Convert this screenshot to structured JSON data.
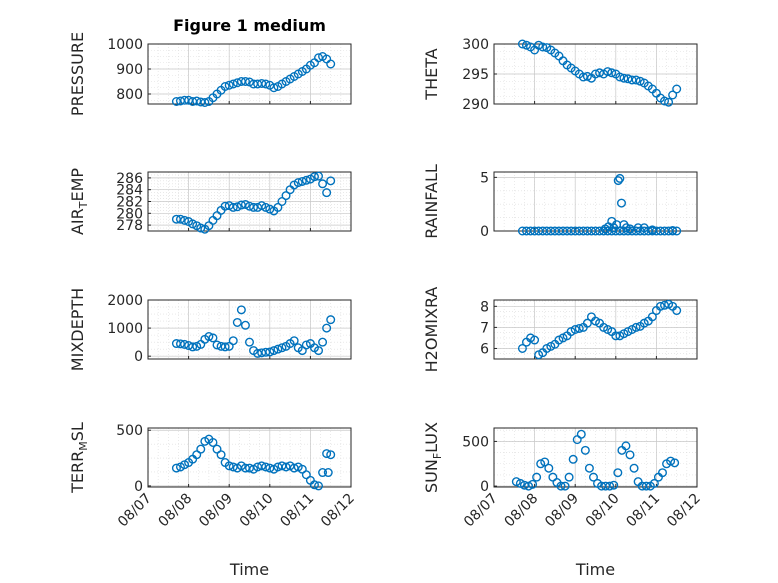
{
  "chart_data": [
    {
      "type": "scatter",
      "title": "Figure 1 medium",
      "ylabel": "PRESSURE",
      "xlabel": "",
      "xlim": [
        0,
        5
      ],
      "ylim": [
        760,
        1000
      ],
      "yticks": [
        800,
        900,
        1000
      ],
      "ytick_labels": [
        "800",
        "900",
        "1000"
      ],
      "xtick_labels": [],
      "grid": true,
      "color": "#0072BD",
      "x": [
        0.7,
        0.8,
        0.9,
        1.0,
        1.1,
        1.2,
        1.3,
        1.4,
        1.5,
        1.6,
        1.7,
        1.8,
        1.9,
        2.0,
        2.1,
        2.2,
        2.3,
        2.4,
        2.5,
        2.6,
        2.7,
        2.8,
        2.9,
        3.0,
        3.1,
        3.2,
        3.3,
        3.4,
        3.5,
        3.6,
        3.7,
        3.8,
        3.9,
        4.0,
        4.1,
        4.2,
        4.3,
        4.4,
        4.5
      ],
      "y": [
        770,
        772,
        775,
        775,
        770,
        772,
        768,
        766,
        770,
        785,
        800,
        815,
        830,
        835,
        840,
        845,
        850,
        850,
        848,
        840,
        840,
        842,
        840,
        835,
        825,
        830,
        840,
        850,
        860,
        870,
        880,
        890,
        900,
        915,
        925,
        945,
        950,
        940,
        920
      ]
    },
    {
      "type": "scatter",
      "title": "",
      "ylabel": "THETA",
      "xlabel": "",
      "xlim": [
        0,
        5
      ],
      "ylim": [
        290,
        300
      ],
      "yticks": [
        290,
        295,
        300
      ],
      "ytick_labels": [
        "290",
        "295",
        "300"
      ],
      "xtick_labels": [],
      "grid": true,
      "color": "#0072BD",
      "x": [
        0.7,
        0.8,
        0.9,
        1.0,
        1.1,
        1.2,
        1.3,
        1.4,
        1.5,
        1.6,
        1.7,
        1.8,
        1.9,
        2.0,
        2.1,
        2.2,
        2.3,
        2.4,
        2.5,
        2.6,
        2.7,
        2.8,
        2.9,
        3.0,
        3.1,
        3.2,
        3.3,
        3.4,
        3.5,
        3.6,
        3.7,
        3.8,
        3.9,
        4.0,
        4.1,
        4.2,
        4.3,
        4.4,
        4.5
      ],
      "y": [
        300,
        299.8,
        299.5,
        299,
        299.8,
        299.5,
        299.4,
        299,
        298.5,
        298,
        297.2,
        296.5,
        296,
        295.5,
        295,
        294.5,
        294.6,
        294.3,
        295,
        295.2,
        295,
        295.4,
        295.2,
        295,
        294.5,
        294.3,
        294.2,
        294,
        294,
        293.8,
        293.5,
        293,
        292.5,
        291.8,
        291,
        290.5,
        290.3,
        291.5,
        292.5
      ]
    },
    {
      "type": "scatter",
      "title": "",
      "ylabel": "AIR_TEMP",
      "xlabel": "",
      "xlim": [
        0,
        5
      ],
      "ylim": [
        277,
        287
      ],
      "yticks": [
        278,
        280,
        282,
        284,
        286
      ],
      "ytick_labels": [
        "278",
        "280",
        "282",
        "284",
        "286"
      ],
      "xtick_labels": [],
      "grid": true,
      "color": "#0072BD",
      "x": [
        0.7,
        0.8,
        0.9,
        1.0,
        1.1,
        1.2,
        1.3,
        1.4,
        1.5,
        1.6,
        1.7,
        1.8,
        1.9,
        2.0,
        2.1,
        2.2,
        2.3,
        2.4,
        2.5,
        2.6,
        2.7,
        2.8,
        2.9,
        3.0,
        3.1,
        3.2,
        3.3,
        3.4,
        3.5,
        3.6,
        3.7,
        3.8,
        3.9,
        4.0,
        4.1,
        4.2,
        4.3,
        4.4,
        4.5
      ],
      "y": [
        279,
        279,
        278.8,
        278.6,
        278.2,
        277.9,
        277.5,
        277.3,
        277.9,
        278.8,
        279.6,
        280.5,
        281.2,
        281.3,
        281,
        281.1,
        281.4,
        281.5,
        281.2,
        281,
        281,
        281.3,
        281,
        280.7,
        280.4,
        281,
        282,
        283,
        284,
        284.8,
        285.2,
        285.4,
        285.6,
        285.8,
        286.2,
        286.3,
        285,
        283.5,
        285.5
      ]
    },
    {
      "type": "scatter",
      "title": "",
      "ylabel": "RAINFALL",
      "xlabel": "",
      "xlim": [
        0,
        5
      ],
      "ylim": [
        0,
        5.5
      ],
      "yticks": [
        0,
        5
      ],
      "ytick_labels": [
        "0",
        "5"
      ],
      "xtick_labels": [],
      "grid": true,
      "color": "#0072BD",
      "x": [
        0.7,
        0.8,
        0.9,
        1.0,
        1.1,
        1.2,
        1.3,
        1.4,
        1.5,
        1.6,
        1.7,
        1.8,
        1.9,
        2.0,
        2.1,
        2.2,
        2.3,
        2.4,
        2.5,
        2.6,
        2.7,
        2.8,
        2.9,
        3.0,
        3.1,
        3.2,
        3.3,
        3.4,
        3.5,
        3.6,
        3.7,
        3.8,
        3.9,
        4.0,
        4.1,
        4.2,
        4.3,
        4.4,
        4.5,
        2.74,
        2.82,
        2.9,
        2.95,
        3.02,
        3.06,
        3.1,
        3.14,
        3.2,
        3.26,
        3.35,
        3.55,
        3.7,
        3.9,
        4.4
      ],
      "y": [
        0,
        0,
        0,
        0,
        0,
        0,
        0,
        0,
        0,
        0,
        0,
        0,
        0,
        0,
        0,
        0,
        0,
        0,
        0,
        0,
        0,
        0,
        0,
        0,
        0,
        0,
        0,
        0,
        0,
        0,
        0,
        0,
        0,
        0,
        0,
        0,
        0,
        0,
        0,
        0.2,
        0.4,
        0.9,
        0.3,
        0.6,
        4.7,
        4.9,
        2.6,
        0.6,
        0.3,
        0.2,
        0.3,
        0.3,
        0.1,
        0.05
      ]
    },
    {
      "type": "scatter",
      "title": "",
      "ylabel": "MIXDEPTH",
      "xlabel": "",
      "xlim": [
        0,
        5
      ],
      "ylim": [
        -100,
        2000
      ],
      "yticks": [
        0,
        1000,
        2000
      ],
      "ytick_labels": [
        "0",
        "1000",
        "2000"
      ],
      "xtick_labels": [],
      "grid": true,
      "color": "#0072BD",
      "x": [
        0.7,
        0.8,
        0.9,
        1.0,
        1.1,
        1.2,
        1.3,
        1.4,
        1.5,
        1.6,
        1.7,
        1.8,
        1.9,
        2.0,
        2.1,
        2.2,
        2.3,
        2.4,
        2.5,
        2.6,
        2.7,
        2.8,
        2.9,
        3.0,
        3.1,
        3.2,
        3.3,
        3.4,
        3.5,
        3.6,
        3.7,
        3.8,
        3.9,
        4.0,
        4.1,
        4.2,
        4.3,
        4.4,
        4.5
      ],
      "y": [
        450,
        440,
        420,
        380,
        330,
        350,
        420,
        600,
        700,
        650,
        400,
        350,
        330,
        350,
        550,
        1200,
        1650,
        1100,
        500,
        200,
        100,
        120,
        140,
        150,
        200,
        250,
        300,
        350,
        450,
        550,
        300,
        200,
        400,
        450,
        300,
        200,
        500,
        1000,
        1300
      ]
    },
    {
      "type": "scatter",
      "title": "",
      "ylabel": "H2OMIXRA",
      "xlabel": "",
      "xlim": [
        0,
        5
      ],
      "ylim": [
        5.5,
        8.3
      ],
      "yticks": [
        6,
        7,
        8
      ],
      "ytick_labels": [
        "6",
        "7",
        "8"
      ],
      "xtick_labels": [],
      "grid": true,
      "color": "#0072BD",
      "x": [
        0.7,
        0.8,
        0.9,
        1.0,
        1.1,
        1.2,
        1.3,
        1.4,
        1.5,
        1.6,
        1.7,
        1.8,
        1.9,
        2.0,
        2.1,
        2.2,
        2.3,
        2.4,
        2.5,
        2.6,
        2.7,
        2.8,
        2.9,
        3.0,
        3.1,
        3.2,
        3.3,
        3.4,
        3.5,
        3.6,
        3.7,
        3.8,
        3.9,
        4.0,
        4.1,
        4.2,
        4.3,
        4.4,
        4.5
      ],
      "y": [
        6.0,
        6.3,
        6.5,
        6.4,
        5.7,
        5.8,
        6.0,
        6.1,
        6.2,
        6.4,
        6.5,
        6.6,
        6.8,
        6.9,
        6.95,
        7.0,
        7.2,
        7.5,
        7.3,
        7.2,
        7.0,
        6.9,
        6.8,
        6.6,
        6.6,
        6.7,
        6.8,
        6.9,
        7.0,
        7.05,
        7.2,
        7.3,
        7.5,
        7.8,
        8.0,
        8.05,
        8.1,
        8.0,
        7.8
      ]
    },
    {
      "type": "scatter",
      "title": "",
      "ylabel": "TERR_MSL",
      "xlabel": "Time",
      "xlim": [
        0,
        5
      ],
      "ylim": [
        -10,
        520
      ],
      "yticks": [
        0,
        500
      ],
      "ytick_labels": [
        "0",
        "500"
      ],
      "xticks": [
        0,
        1,
        2,
        3,
        4,
        5
      ],
      "xtick_labels": [
        "08/07",
        "08/08",
        "08/09",
        "08/10",
        "08/11",
        "08/12"
      ],
      "grid": true,
      "color": "#0072BD",
      "x": [
        0.7,
        0.8,
        0.9,
        1.0,
        1.1,
        1.2,
        1.3,
        1.4,
        1.5,
        1.6,
        1.7,
        1.8,
        1.9,
        2.0,
        2.1,
        2.2,
        2.3,
        2.4,
        2.5,
        2.6,
        2.7,
        2.8,
        2.9,
        3.0,
        3.1,
        3.2,
        3.3,
        3.4,
        3.5,
        3.6,
        3.7,
        3.8,
        3.9,
        4.0,
        4.1,
        4.2,
        4.3,
        4.4,
        4.5,
        4.44
      ],
      "y": [
        160,
        170,
        190,
        210,
        240,
        280,
        330,
        400,
        420,
        390,
        330,
        280,
        210,
        180,
        170,
        160,
        180,
        160,
        160,
        150,
        170,
        180,
        170,
        160,
        150,
        170,
        180,
        170,
        180,
        160,
        170,
        150,
        100,
        50,
        10,
        0,
        120,
        290,
        280,
        120
      ]
    },
    {
      "type": "scatter",
      "title": "",
      "ylabel": "SUN_FLUX",
      "xlabel": "Time",
      "xlim": [
        0,
        5
      ],
      "ylim": [
        -10,
        650
      ],
      "yticks": [
        0,
        500
      ],
      "ytick_labels": [
        "0",
        "500"
      ],
      "xticks": [
        0,
        1,
        2,
        3,
        4,
        5
      ],
      "xtick_labels": [
        "08/07",
        "08/08",
        "08/09",
        "08/10",
        "08/11",
        "08/12"
      ],
      "grid": true,
      "color": "#0072BD",
      "x": [
        0.55,
        0.65,
        0.75,
        0.85,
        0.95,
        1.05,
        1.15,
        1.25,
        1.35,
        1.45,
        1.55,
        1.65,
        1.75,
        1.85,
        1.95,
        2.05,
        2.15,
        2.25,
        2.35,
        2.45,
        2.55,
        2.65,
        2.75,
        2.85,
        2.95,
        3.05,
        3.15,
        3.25,
        3.35,
        3.45,
        3.55,
        3.65,
        3.75,
        3.85,
        3.95,
        4.05,
        4.15,
        4.25,
        4.35,
        4.45
      ],
      "y": [
        50,
        30,
        10,
        0,
        20,
        100,
        250,
        270,
        200,
        100,
        40,
        0,
        0,
        100,
        300,
        520,
        580,
        400,
        200,
        100,
        30,
        0,
        0,
        0,
        10,
        150,
        400,
        450,
        350,
        200,
        50,
        0,
        0,
        0,
        30,
        100,
        150,
        250,
        280,
        260
      ]
    }
  ]
}
